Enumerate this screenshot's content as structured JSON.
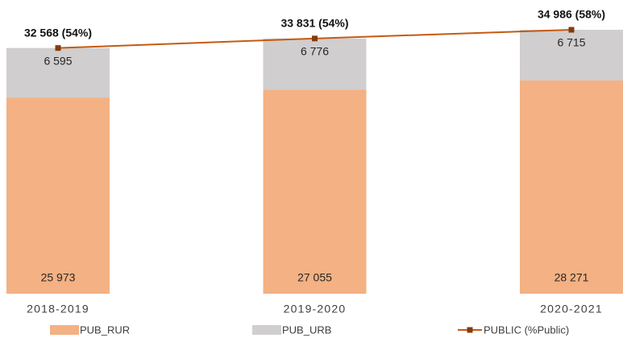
{
  "chart_data": {
    "type": "bar",
    "stacked": true,
    "categories": [
      "2018-2019",
      "2019-2020",
      "2020-2021"
    ],
    "series": [
      {
        "name": "PUB_RUR",
        "color": "#f4b183",
        "values": [
          25973,
          27055,
          28271
        ],
        "value_labels": [
          "25 973",
          "27 055",
          "28 271"
        ]
      },
      {
        "name": "PUB_URB",
        "color": "#d0cece",
        "values": [
          6595,
          6776,
          6715
        ],
        "value_labels": [
          "6 595",
          "6 776",
          "6 715"
        ]
      },
      {
        "name": "PUBLIC (%Public)",
        "type": "line",
        "color": "#c55a11",
        "marker_color": "#843c0c",
        "values": [
          32568,
          33831,
          34986
        ],
        "value_labels": [
          "32 568 (54%)",
          "33 831 (54%)",
          "34 986 (58%)"
        ]
      }
    ],
    "legend": "bottom"
  }
}
